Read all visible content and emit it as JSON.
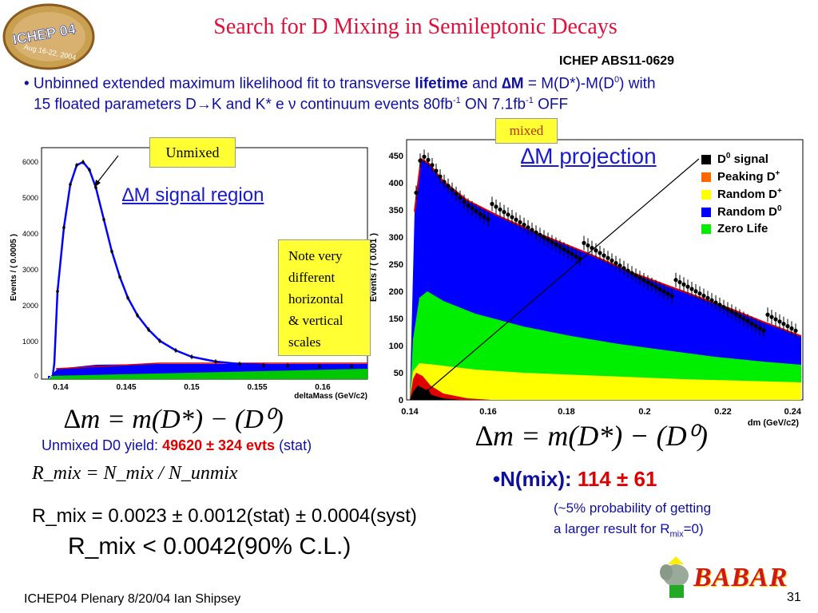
{
  "logo_left": {
    "line1": "ICHEP 04",
    "line2": "Aug 16-22, 2004"
  },
  "title": "Search for D Mixing in Semileptonic Decays",
  "abstract_no": "ICHEP ABS11-0629",
  "bullet": {
    "line1_a": "• Unbinned extended maximum likelihood fit to transverse ",
    "line1_b": "lifetime",
    "line1_c": " and ",
    "line1_d": "∆M",
    "line1_e": " = M(D*)-M(D",
    "line1_sup": "0",
    "line1_f": ") with",
    "line2_a": "15 floated parameters D",
    "line2_arrow": "→",
    "line2_b": "K and K* e ν   continuum events  80fb",
    "line2_sup1": "-1",
    "line2_c": " ON 7.1fb",
    "line2_sup2": "-1",
    "line2_d": " OFF"
  },
  "left_plot": {
    "box_label": "Unmixed",
    "region_label": "∆M signal region",
    "ylabel": "Events / ( 0.0005 )",
    "xlabel": "deltaMass (GeV/c2)",
    "xticks": [
      "0.14",
      "0.145",
      "0.15",
      "0.155",
      "0.16"
    ],
    "yticks": [
      "0",
      "1000",
      "2000",
      "3000",
      "4000",
      "5000",
      "6000"
    ]
  },
  "note": {
    "lines": [
      "Note very",
      "different",
      "horizontal",
      "& vertical",
      "scales"
    ]
  },
  "right_plot": {
    "box_label": "mixed",
    "projection_label": "∆M projection",
    "ylabel": "Events / ( 0.001 )",
    "xlabel": "dm (GeV/c2)",
    "xticks": [
      "0.14",
      "0.16",
      "0.18",
      "0.2",
      "0.22",
      "0.24"
    ],
    "yticks": [
      "0",
      "50",
      "100",
      "150",
      "200",
      "250",
      "300",
      "350",
      "400",
      "450"
    ]
  },
  "legend": [
    {
      "label": "D",
      "sup": "0",
      "suffix": " signal",
      "color": "#000000"
    },
    {
      "label": "Peaking D",
      "sup": "+",
      "suffix": "",
      "color": "#ff6600"
    },
    {
      "label": "Random D",
      "sup": "+",
      "suffix": "",
      "color": "#ffff00"
    },
    {
      "label": "Random D",
      "sup": "0",
      "suffix": "",
      "color": "#0000ff"
    },
    {
      "label": "Zero Life",
      "sup": "",
      "suffix": "",
      "color": "#00ee00"
    }
  ],
  "yield": {
    "prefix": "Unmixed D0 yield:  ",
    "value": "49620 ± 324 evts",
    "suffix": " (stat)"
  },
  "formulas": {
    "dm_left": "∆m = m(D*) − (D⁰)",
    "dm_right": "∆m = m(D*) − (D⁰)",
    "rmix_def": "R_mix = N_mix / N_unmix",
    "rmix_value": "R_mix = 0.0023 ± 0.0012(stat) ± 0.0004(syst)",
    "rmix_limit": "R_mix < 0.0042(90% C.L.)"
  },
  "nmix": {
    "prefix": "•N(mix): ",
    "value": "114 ± 61",
    "note1": "(~5% probability of getting",
    "note2": "a larger result for R",
    "note2_sub": "mix",
    "note2_end": "=0)"
  },
  "footer": "ICHEP04 Plenary 8/20/04 Ian Shipsey",
  "page_number": "31",
  "logo_right": "BABAR",
  "colors": {
    "title": "#e0103a",
    "bullet": "#1010a0",
    "link": "#1a1ad0",
    "red_value": "#e00000"
  }
}
